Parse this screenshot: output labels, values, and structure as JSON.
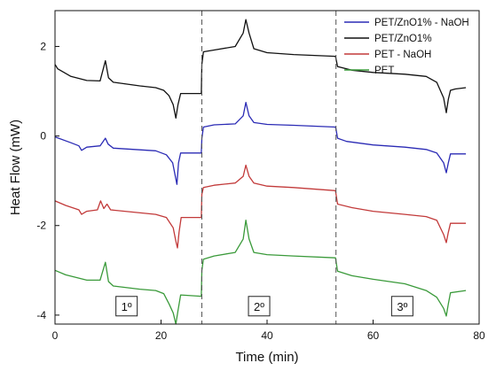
{
  "chart_data": {
    "type": "line",
    "xlabel": "Time (min)",
    "ylabel": "Heat Flow (mW)",
    "xlim": [
      0,
      80
    ],
    "ylim": [
      -4.2,
      2.8
    ],
    "xticks": [
      0,
      20,
      40,
      60,
      80
    ],
    "yticks": [
      -4,
      -2,
      0,
      2
    ],
    "grid": false,
    "legend_position": "top-right",
    "segment_boundaries": [
      27.7,
      53
    ],
    "segment_labels": [
      {
        "text": "1º",
        "x": 13.5,
        "y": -3.8
      },
      {
        "text": "2º",
        "x": 38.5,
        "y": -3.8
      },
      {
        "text": "3º",
        "x": 65.5,
        "y": -3.8
      }
    ],
    "series": [
      {
        "name": "PET/ZnO1% - NaOH",
        "color": "#2b2bb5",
        "points": [
          [
            0,
            -0.02
          ],
          [
            3,
            -0.15
          ],
          [
            4.5,
            -0.22
          ],
          [
            5,
            -0.32
          ],
          [
            6,
            -0.25
          ],
          [
            8.5,
            -0.22
          ],
          [
            9.5,
            -0.05
          ],
          [
            10,
            -0.18
          ],
          [
            11,
            -0.27
          ],
          [
            19,
            -0.33
          ],
          [
            21,
            -0.42
          ],
          [
            22.2,
            -0.6
          ],
          [
            22.7,
            -0.9
          ],
          [
            23,
            -1.08
          ],
          [
            23.3,
            -0.6
          ],
          [
            23.7,
            -0.38
          ],
          [
            27.6,
            -0.38
          ],
          [
            27.7,
            -0.05
          ],
          [
            28,
            0.2
          ],
          [
            30,
            0.25
          ],
          [
            34,
            0.27
          ],
          [
            35.5,
            0.45
          ],
          [
            36,
            0.75
          ],
          [
            36.6,
            0.45
          ],
          [
            37.5,
            0.3
          ],
          [
            40,
            0.26
          ],
          [
            45,
            0.24
          ],
          [
            52.9,
            0.2
          ],
          [
            53,
            0.15
          ],
          [
            53.3,
            -0.05
          ],
          [
            55,
            -0.12
          ],
          [
            60,
            -0.2
          ],
          [
            66,
            -0.25
          ],
          [
            70,
            -0.3
          ],
          [
            72,
            -0.38
          ],
          [
            73.3,
            -0.6
          ],
          [
            73.8,
            -0.82
          ],
          [
            74.2,
            -0.6
          ],
          [
            74.6,
            -0.4
          ],
          [
            77.5,
            -0.4
          ]
        ]
      },
      {
        "name": "PET/ZnO1%",
        "color": "#111111",
        "points": [
          [
            0,
            1.6
          ],
          [
            0.5,
            1.5
          ],
          [
            3,
            1.33
          ],
          [
            6,
            1.24
          ],
          [
            8.5,
            1.23
          ],
          [
            9.5,
            1.68
          ],
          [
            10.1,
            1.3
          ],
          [
            11,
            1.2
          ],
          [
            16,
            1.12
          ],
          [
            19,
            1.08
          ],
          [
            20.5,
            1.02
          ],
          [
            21.5,
            0.9
          ],
          [
            22.3,
            0.7
          ],
          [
            22.8,
            0.4
          ],
          [
            23.2,
            0.7
          ],
          [
            23.7,
            0.95
          ],
          [
            27.6,
            0.95
          ],
          [
            27.7,
            1.6
          ],
          [
            28,
            1.88
          ],
          [
            30,
            1.92
          ],
          [
            34,
            2.0
          ],
          [
            35.5,
            2.3
          ],
          [
            36,
            2.6
          ],
          [
            36.6,
            2.3
          ],
          [
            37.5,
            1.95
          ],
          [
            40,
            1.86
          ],
          [
            45,
            1.82
          ],
          [
            52.9,
            1.78
          ],
          [
            53,
            1.72
          ],
          [
            53.3,
            1.55
          ],
          [
            56,
            1.47
          ],
          [
            60,
            1.42
          ],
          [
            66,
            1.38
          ],
          [
            70,
            1.33
          ],
          [
            72,
            1.2
          ],
          [
            73.3,
            0.85
          ],
          [
            73.8,
            0.52
          ],
          [
            74.2,
            0.82
          ],
          [
            74.6,
            1.02
          ],
          [
            75.5,
            1.05
          ],
          [
            77.5,
            1.08
          ]
        ]
      },
      {
        "name": "PET - NaOH",
        "color": "#c23a3a",
        "points": [
          [
            0,
            -1.45
          ],
          [
            2,
            -1.55
          ],
          [
            4.5,
            -1.65
          ],
          [
            5,
            -1.75
          ],
          [
            6,
            -1.68
          ],
          [
            8,
            -1.65
          ],
          [
            8.6,
            -1.45
          ],
          [
            9.2,
            -1.62
          ],
          [
            9.8,
            -1.52
          ],
          [
            10.5,
            -1.65
          ],
          [
            19,
            -1.75
          ],
          [
            21,
            -1.82
          ],
          [
            22.3,
            -2.05
          ],
          [
            22.8,
            -2.35
          ],
          [
            23.1,
            -2.5
          ],
          [
            23.4,
            -2.15
          ],
          [
            23.8,
            -1.82
          ],
          [
            27.6,
            -1.82
          ],
          [
            27.7,
            -1.3
          ],
          [
            28,
            -1.15
          ],
          [
            30,
            -1.1
          ],
          [
            34,
            -1.05
          ],
          [
            35.5,
            -0.9
          ],
          [
            36,
            -0.65
          ],
          [
            36.6,
            -0.9
          ],
          [
            37.5,
            -1.05
          ],
          [
            40,
            -1.12
          ],
          [
            45,
            -1.15
          ],
          [
            52.9,
            -1.22
          ],
          [
            53,
            -1.3
          ],
          [
            53.3,
            -1.52
          ],
          [
            56,
            -1.6
          ],
          [
            60,
            -1.68
          ],
          [
            66,
            -1.75
          ],
          [
            70,
            -1.8
          ],
          [
            72,
            -1.88
          ],
          [
            73.3,
            -2.2
          ],
          [
            73.8,
            -2.38
          ],
          [
            74.2,
            -2.15
          ],
          [
            74.6,
            -1.95
          ],
          [
            77.5,
            -1.95
          ]
        ]
      },
      {
        "name": "PET",
        "color": "#3a9a3a",
        "points": [
          [
            0,
            -3.0
          ],
          [
            2,
            -3.1
          ],
          [
            6,
            -3.22
          ],
          [
            8.5,
            -3.22
          ],
          [
            9.5,
            -2.82
          ],
          [
            10.1,
            -3.25
          ],
          [
            11,
            -3.35
          ],
          [
            16,
            -3.42
          ],
          [
            19,
            -3.45
          ],
          [
            20.5,
            -3.52
          ],
          [
            21.5,
            -3.75
          ],
          [
            22.3,
            -3.95
          ],
          [
            22.8,
            -4.2
          ],
          [
            23.2,
            -3.9
          ],
          [
            23.7,
            -3.55
          ],
          [
            27.6,
            -3.58
          ],
          [
            27.7,
            -3.0
          ],
          [
            28,
            -2.75
          ],
          [
            30,
            -2.68
          ],
          [
            34,
            -2.6
          ],
          [
            35.5,
            -2.3
          ],
          [
            36,
            -1.88
          ],
          [
            36.6,
            -2.3
          ],
          [
            37.5,
            -2.6
          ],
          [
            40,
            -2.65
          ],
          [
            45,
            -2.68
          ],
          [
            52.9,
            -2.72
          ],
          [
            53,
            -2.8
          ],
          [
            53.3,
            -3.02
          ],
          [
            56,
            -3.12
          ],
          [
            60,
            -3.2
          ],
          [
            66,
            -3.3
          ],
          [
            70,
            -3.45
          ],
          [
            72,
            -3.6
          ],
          [
            73.3,
            -3.85
          ],
          [
            73.8,
            -4.02
          ],
          [
            74.2,
            -3.75
          ],
          [
            74.6,
            -3.5
          ],
          [
            77.5,
            -3.45
          ]
        ]
      }
    ]
  }
}
